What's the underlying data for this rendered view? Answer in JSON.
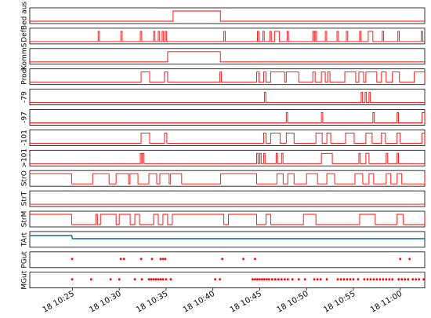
{
  "chart_data": {
    "type": "step-line-multi-panel",
    "x_domain": [
      "18 10:20:27",
      "18 11:02:37"
    ],
    "xticks": [
      "18 10:25",
      "18 10:30",
      "18 10:35",
      "18 10:40",
      "18 10:45",
      "18 10:50",
      "18 10:55",
      "18 11:00"
    ],
    "xtick_times": [
      "10:25",
      "10:30",
      "10:35",
      "10:40",
      "10:45",
      "10:50",
      "10:55",
      "11:00"
    ],
    "grid": false,
    "colors": {
      "step": "#ff0000",
      "line": "#1f77b4",
      "marker": "#ff0000"
    },
    "panels": [
      {
        "label": "Bed aus",
        "type": "step",
        "base": 0,
        "spans": [
          [
            "10:35:45",
            "10:40:48"
          ]
        ]
      },
      {
        "label": "Def",
        "type": "step",
        "base": 0,
        "spans": [
          [
            "10:27:45",
            "10:27:54"
          ],
          [
            "10:30:10",
            "10:30:19"
          ],
          [
            "10:32:15",
            "10:32:24"
          ],
          [
            "10:33:40",
            "10:33:49"
          ],
          [
            "10:34:10",
            "10:34:19"
          ],
          [
            "10:34:35",
            "10:34:44"
          ],
          [
            "10:34:55",
            "10:35:04"
          ],
          [
            "10:41:10",
            "10:41:19"
          ],
          [
            "10:44:45",
            "10:44:54"
          ],
          [
            "10:45:20",
            "10:45:29"
          ],
          [
            "10:46:05",
            "10:46:14"
          ],
          [
            "10:46:35",
            "10:47:05"
          ],
          [
            "10:47:55",
            "10:48:04"
          ],
          [
            "10:50:40",
            "10:50:49"
          ],
          [
            "10:50:55",
            "10:51:04"
          ],
          [
            "10:52:00",
            "10:52:09"
          ],
          [
            "10:53:15",
            "10:53:24"
          ],
          [
            "10:54:15",
            "10:54:24"
          ],
          [
            "10:55:40",
            "10:55:49"
          ],
          [
            "10:56:35",
            "10:57:05"
          ],
          [
            "10:58:05",
            "10:58:14"
          ],
          [
            "10:59:45",
            "10:59:54"
          ],
          [
            "11:02:15",
            "11:02:24"
          ]
        ]
      },
      {
        "label": "KommS",
        "type": "step",
        "base": 0,
        "spans": [
          [
            "10:35:10",
            "10:40:48"
          ]
        ]
      },
      {
        "label": "Prod",
        "type": "step",
        "base": 0,
        "spans": [
          [
            "10:32:20",
            "10:33:15"
          ],
          [
            "10:34:50",
            "10:35:10"
          ],
          [
            "10:40:45",
            "10:40:55"
          ],
          [
            "10:44:40",
            "10:44:55"
          ],
          [
            "10:45:25",
            "10:45:40"
          ],
          [
            "10:46:10",
            "10:47:40"
          ],
          [
            "10:47:50",
            "10:49:10"
          ],
          [
            "10:50:40",
            "10:50:55"
          ],
          [
            "10:51:35",
            "10:52:00"
          ],
          [
            "10:52:15",
            "10:52:30"
          ],
          [
            "10:54:05",
            "10:55:15"
          ],
          [
            "10:55:35",
            "10:56:05"
          ],
          [
            "10:56:20",
            "10:57:30"
          ],
          [
            "10:58:00",
            "10:58:30"
          ],
          [
            "10:59:10",
            "10:59:55"
          ],
          [
            "11:01:30",
            "11:02:37"
          ]
        ]
      },
      {
        "label": "-79",
        "type": "step",
        "base": 0,
        "spans": [
          [
            "10:45:30",
            "10:45:39"
          ],
          [
            "10:55:50",
            "10:55:59"
          ],
          [
            "10:56:15",
            "10:56:24"
          ],
          [
            "10:56:40",
            "10:56:49"
          ]
        ]
      },
      {
        "label": "-97",
        "type": "step",
        "base": 0,
        "spans": [
          [
            "10:47:50",
            "10:47:59"
          ],
          [
            "10:51:35",
            "10:51:44"
          ],
          [
            "10:57:05",
            "10:57:14"
          ],
          [
            "10:59:40",
            "10:59:49"
          ],
          [
            "11:02:20",
            "11:02:37"
          ]
        ]
      },
      {
        "label": "-101",
        "type": "step",
        "base": 0,
        "spans": [
          [
            "10:32:20",
            "10:33:15"
          ],
          [
            "10:34:50",
            "10:35:05"
          ],
          [
            "10:45:25",
            "10:45:40"
          ],
          [
            "10:46:10",
            "10:47:10"
          ],
          [
            "10:47:50",
            "10:48:40"
          ],
          [
            "10:51:00",
            "10:51:40"
          ],
          [
            "10:52:10",
            "10:52:35"
          ],
          [
            "10:54:10",
            "10:55:05"
          ],
          [
            "10:56:20",
            "10:57:00"
          ],
          [
            "10:58:00",
            "10:58:25"
          ],
          [
            "10:59:40",
            "11:00:00"
          ],
          [
            "11:02:20",
            "11:02:37"
          ]
        ]
      },
      {
        "label": ">101",
        "type": "step",
        "base": 0,
        "spans": [
          [
            "10:32:15",
            "10:32:24"
          ],
          [
            "10:32:30",
            "10:32:39"
          ],
          [
            "10:44:40",
            "10:44:49"
          ],
          [
            "10:45:00",
            "10:45:09"
          ],
          [
            "10:45:25",
            "10:45:34"
          ],
          [
            "10:46:45",
            "10:46:54"
          ],
          [
            "10:47:20",
            "10:47:29"
          ],
          [
            "10:51:35",
            "10:52:45"
          ],
          [
            "10:55:35",
            "10:55:44"
          ],
          [
            "10:56:20",
            "10:56:40"
          ],
          [
            "10:58:30",
            "10:58:40"
          ],
          [
            "10:59:40",
            "10:59:49"
          ]
        ]
      },
      {
        "label": "StrO",
        "type": "step",
        "base": 1,
        "spans": [
          [
            "10:24:55",
            "10:27:10"
          ],
          [
            "10:28:55",
            "10:29:40"
          ],
          [
            "10:31:00",
            "10:31:09"
          ],
          [
            "10:32:00",
            "10:33:10"
          ],
          [
            "10:34:00",
            "10:34:20"
          ],
          [
            "10:35:20",
            "10:35:29"
          ],
          [
            "10:36:40",
            "10:40:50"
          ],
          [
            "10:44:40",
            "10:46:50"
          ],
          [
            "10:47:30",
            "10:48:00"
          ],
          [
            "10:48:40",
            "10:50:00"
          ],
          [
            "10:51:10",
            "10:52:10"
          ],
          [
            "10:53:00",
            "10:55:10"
          ],
          [
            "10:56:00",
            "10:56:40"
          ],
          [
            "10:57:10",
            "10:58:30"
          ],
          [
            "10:59:00",
            "10:59:40"
          ],
          [
            "11:00:10",
            "11:02:37"
          ]
        ]
      },
      {
        "label": "StrT",
        "type": "step",
        "base": 0,
        "spans": []
      },
      {
        "label": "StrM",
        "type": "step",
        "base": 1,
        "spans": [
          [
            "10:24:55",
            "10:27:30"
          ],
          [
            "10:27:40",
            "10:28:00"
          ],
          [
            "10:29:40",
            "10:30:00"
          ],
          [
            "10:31:10",
            "10:31:40"
          ],
          [
            "10:32:10",
            "10:33:40"
          ],
          [
            "10:34:10",
            "10:34:40"
          ],
          [
            "10:35:10",
            "10:35:40"
          ],
          [
            "10:41:10",
            "10:41:40"
          ],
          [
            "10:44:40",
            "10:45:40"
          ],
          [
            "10:46:10",
            "10:49:40"
          ],
          [
            "10:51:00",
            "10:55:40"
          ],
          [
            "10:57:20",
            "10:59:40"
          ],
          [
            "11:00:20",
            "11:02:37"
          ]
        ]
      },
      {
        "label": "TArt",
        "type": "line",
        "points": [
          [
            "10:20:27",
            0.75
          ],
          [
            "10:24:55",
            0.75
          ],
          [
            "10:25:00",
            0.55
          ],
          [
            "11:02:37",
            0.55
          ]
        ]
      },
      {
        "label": "PGut",
        "type": "markers",
        "points": [
          "10:24:58",
          "10:30:10",
          "10:30:30",
          "10:32:20",
          "10:33:30",
          "10:34:25",
          "10:34:40",
          "10:34:55",
          "10:41:00",
          "10:43:15",
          "10:44:30",
          "11:00:00",
          "11:01:00"
        ]
      },
      {
        "label": "MGut",
        "type": "markers",
        "points": [
          "10:24:58",
          "10:27:00",
          "10:29:05",
          "10:30:00",
          "10:31:40",
          "10:32:25",
          "10:33:10",
          "10:33:25",
          "10:33:40",
          "10:33:55",
          "10:34:10",
          "10:34:25",
          "10:34:40",
          "10:35:00",
          "10:35:30",
          "10:40:15",
          "10:40:45",
          "10:44:15",
          "10:44:30",
          "10:44:45",
          "10:45:00",
          "10:45:15",
          "10:45:30",
          "10:45:45",
          "10:46:00",
          "10:46:20",
          "10:46:40",
          "10:47:00",
          "10:47:20",
          "10:47:40",
          "10:48:00",
          "10:48:30",
          "10:49:10",
          "10:49:50",
          "10:50:50",
          "10:51:10",
          "10:51:30",
          "10:52:10",
          "10:53:20",
          "10:53:40",
          "10:54:00",
          "10:54:20",
          "10:54:40",
          "10:55:00",
          "10:55:30",
          "10:56:10",
          "10:56:30",
          "10:56:50",
          "10:57:10",
          "10:57:30",
          "10:57:50",
          "10:58:10",
          "10:58:30",
          "10:58:50",
          "10:59:10",
          "10:59:50",
          "11:00:10",
          "11:00:30",
          "11:00:50",
          "11:01:20",
          "11:01:40",
          "11:02:00",
          "11:02:30"
        ]
      }
    ]
  }
}
